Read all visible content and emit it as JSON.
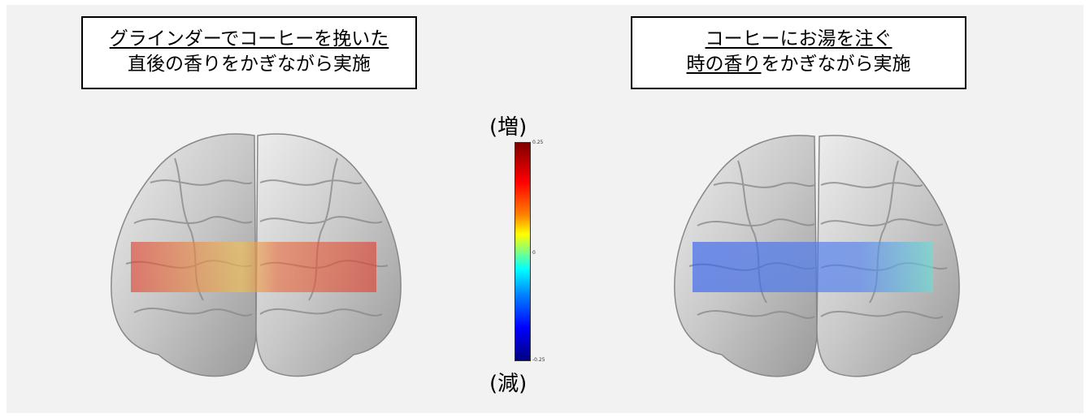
{
  "left_label": {
    "line1": "グラインダーでコーヒーを挽いた",
    "line2": "直後の香りをかぎながら実施"
  },
  "right_label": {
    "line1": "コーヒーにお湯を注ぐ",
    "line2_underlined": "時の香り",
    "line2_rest": "をかぎながら実施"
  },
  "colorbar": {
    "top_label": "(増)",
    "bottom_label": "(減)",
    "max_tick": "0.25",
    "mid_tick": "0",
    "min_tick": "-0.25"
  },
  "colors": {
    "increase_overlay": "#e03a2a",
    "increase_highlight": "#f6c24a",
    "decrease_overlay": "#2f5ef0",
    "decrease_highlight": "#66e0d8"
  }
}
